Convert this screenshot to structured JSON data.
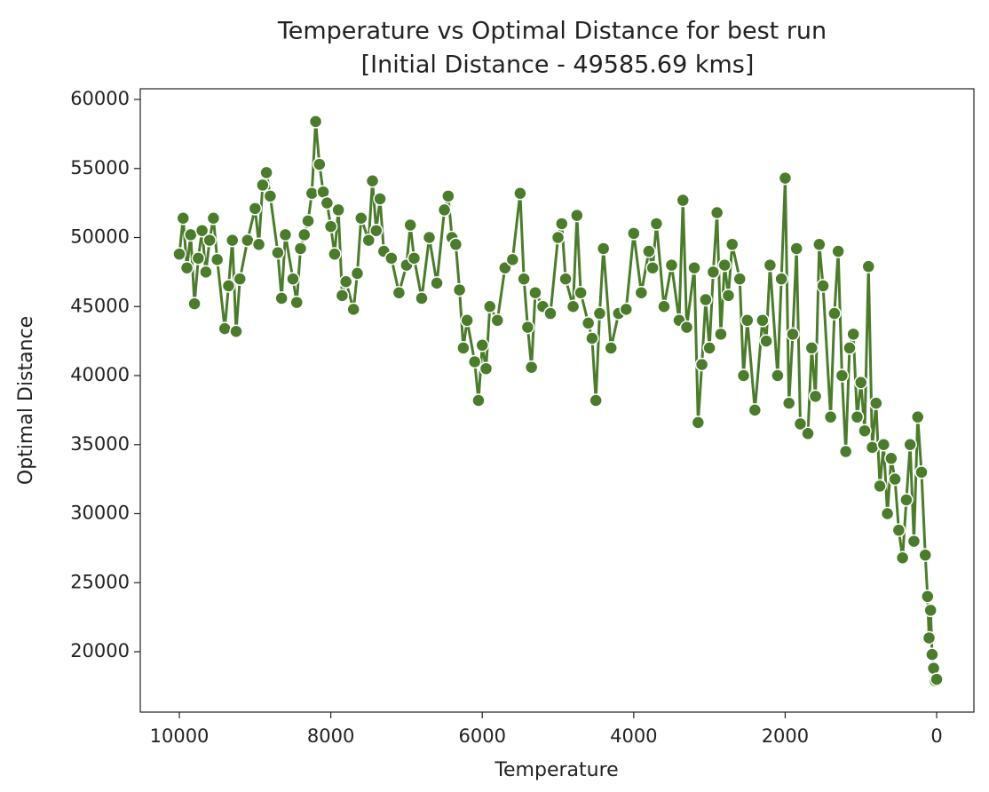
{
  "chart_data": {
    "type": "line",
    "title": "Temperature vs Optimal Distance for best run",
    "subtitle": "[Initial Distance - 49585.69 kms]",
    "x_label": "Temperature",
    "y_label": "Optimal Distance",
    "color": "#4a7c2a",
    "marker_edge_color": "#ffffff",
    "grid": false,
    "xlim": [
      10516,
      -492
    ],
    "ylim": [
      15627,
      60772
    ],
    "xticks": [
      10000,
      8000,
      6000,
      4000,
      2000,
      0
    ],
    "yticks": [
      20000,
      25000,
      30000,
      35000,
      40000,
      45000,
      50000,
      55000,
      60000
    ],
    "x": [
      10000,
      9950,
      9900,
      9850,
      9800,
      9750,
      9700,
      9650,
      9600,
      9550,
      9500,
      9400,
      9350,
      9300,
      9250,
      9200,
      9100,
      9000,
      8950,
      8900,
      8850,
      8800,
      8700,
      8650,
      8600,
      8500,
      8450,
      8400,
      8350,
      8300,
      8250,
      8200,
      8150,
      8100,
      8050,
      8000,
      7950,
      7900,
      7850,
      7800,
      7700,
      7650,
      7600,
      7500,
      7450,
      7400,
      7350,
      7300,
      7200,
      7100,
      7000,
      6950,
      6900,
      6800,
      6700,
      6600,
      6500,
      6450,
      6400,
      6350,
      6300,
      6250,
      6200,
      6100,
      6050,
      6000,
      5950,
      5900,
      5800,
      5700,
      5600,
      5500,
      5450,
      5400,
      5350,
      5300,
      5200,
      5100,
      5000,
      4950,
      4900,
      4800,
      4750,
      4700,
      4600,
      4550,
      4500,
      4450,
      4400,
      4300,
      4200,
      4100,
      4000,
      3900,
      3800,
      3750,
      3700,
      3600,
      3500,
      3400,
      3350,
      3300,
      3200,
      3150,
      3100,
      3050,
      3000,
      2950,
      2900,
      2850,
      2800,
      2750,
      2700,
      2600,
      2550,
      2500,
      2400,
      2300,
      2250,
      2200,
      2100,
      2050,
      2000,
      1950,
      1900,
      1850,
      1800,
      1700,
      1650,
      1600,
      1550,
      1500,
      1400,
      1350,
      1300,
      1250,
      1200,
      1150,
      1100,
      1050,
      1000,
      950,
      900,
      850,
      800,
      750,
      700,
      650,
      600,
      550,
      500,
      450,
      400,
      350,
      300,
      250,
      200,
      150,
      120,
      100,
      80,
      60,
      40,
      20,
      0
    ],
    "values": [
      48800,
      51400,
      47800,
      50200,
      45200,
      48500,
      50500,
      47500,
      49800,
      51400,
      48400,
      43400,
      46500,
      49800,
      43200,
      47000,
      49800,
      52100,
      49500,
      53800,
      54700,
      53000,
      48900,
      45600,
      50200,
      47000,
      45300,
      49200,
      50200,
      51200,
      53200,
      58400,
      55300,
      53300,
      52500,
      50800,
      48800,
      52000,
      45800,
      46800,
      44800,
      47400,
      51400,
      49800,
      54100,
      50500,
      52800,
      49000,
      48500,
      46000,
      48000,
      50900,
      48500,
      45600,
      50000,
      46700,
      52000,
      53000,
      50000,
      49500,
      46200,
      42000,
      44000,
      41000,
      38200,
      42200,
      40500,
      45000,
      44000,
      47800,
      48400,
      53200,
      47000,
      43500,
      40600,
      46000,
      45000,
      44500,
      50000,
      51000,
      47000,
      45000,
      51600,
      46000,
      43800,
      42700,
      38200,
      44500,
      49200,
      42000,
      44500,
      44800,
      50300,
      46000,
      49000,
      47800,
      51000,
      45000,
      48000,
      44000,
      52700,
      43500,
      47800,
      36600,
      40800,
      45500,
      42000,
      47500,
      51800,
      43000,
      48000,
      45800,
      49500,
      47000,
      40000,
      44000,
      37500,
      44000,
      42500,
      48000,
      40000,
      47000,
      54300,
      38000,
      43000,
      49200,
      36500,
      35800,
      42000,
      38500,
      49500,
      46500,
      37000,
      44500,
      49000,
      40000,
      34500,
      42000,
      43000,
      37000,
      39500,
      36000,
      47900,
      34800,
      38000,
      32000,
      35000,
      30000,
      34000,
      32500,
      28800,
      26800,
      31000,
      35000,
      28000,
      37000,
      33000,
      27000,
      24000,
      21000,
      23000,
      19800,
      18800,
      17900,
      18000
    ]
  }
}
